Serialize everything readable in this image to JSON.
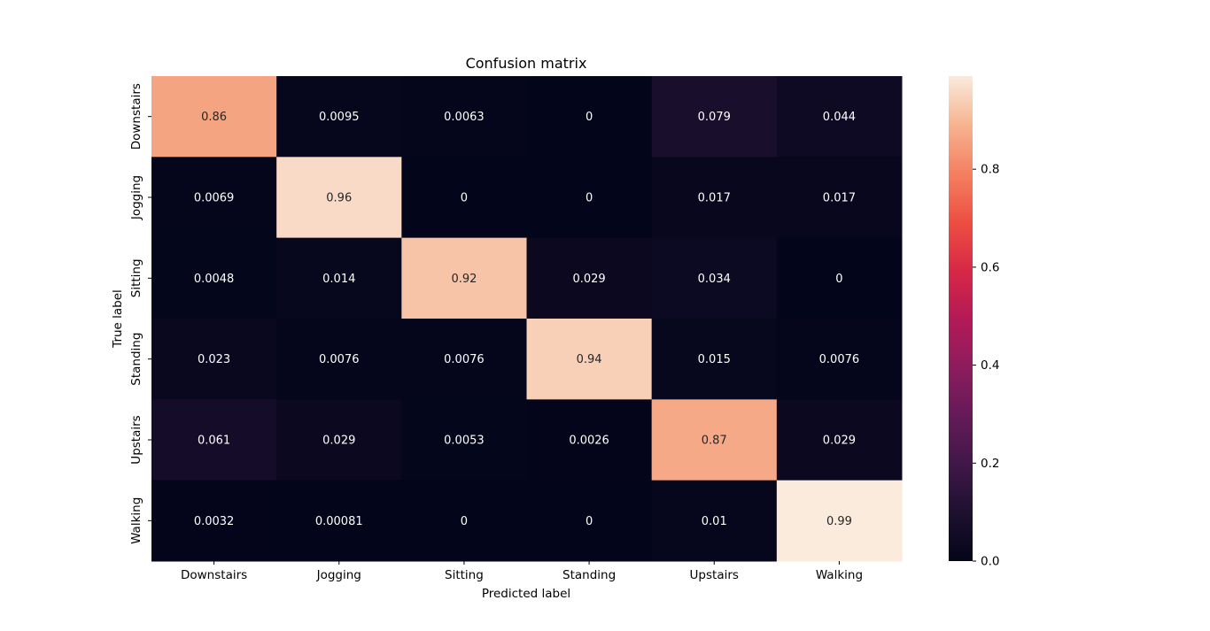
{
  "chart_data": {
    "type": "heatmap",
    "title": "Confusion matrix",
    "xlabel": "Predicted label",
    "ylabel": "True label",
    "x_categories": [
      "Downstairs",
      "Jogging",
      "Sitting",
      "Standing",
      "Upstairs",
      "Walking"
    ],
    "y_categories": [
      "Downstairs",
      "Jogging",
      "Sitting",
      "Standing",
      "Upstairs",
      "Walking"
    ],
    "values": [
      [
        0.86,
        0.0095,
        0.0063,
        0,
        0.079,
        0.044
      ],
      [
        0.0069,
        0.96,
        0,
        0,
        0.017,
        0.017
      ],
      [
        0.0048,
        0.014,
        0.92,
        0.029,
        0.034,
        0
      ],
      [
        0.023,
        0.0076,
        0.0076,
        0.94,
        0.015,
        0.0076
      ],
      [
        0.061,
        0.029,
        0.0053,
        0.0026,
        0.87,
        0.029
      ],
      [
        0.0032,
        0.00081,
        0,
        0,
        0.01,
        0.99
      ]
    ],
    "cell_labels": [
      [
        "0.86",
        "0.0095",
        "0.0063",
        "0",
        "0.079",
        "0.044"
      ],
      [
        "0.0069",
        "0.96",
        "0",
        "0",
        "0.017",
        "0.017"
      ],
      [
        "0.0048",
        "0.014",
        "0.92",
        "0.029",
        "0.034",
        "0"
      ],
      [
        "0.023",
        "0.0076",
        "0.0076",
        "0.94",
        "0.015",
        "0.0076"
      ],
      [
        "0.061",
        "0.029",
        "0.0053",
        "0.0026",
        "0.87",
        "0.029"
      ],
      [
        "0.0032",
        "0.00081",
        "0",
        "0",
        "0.01",
        "0.99"
      ]
    ],
    "colorbar": {
      "range": [
        0,
        0.99
      ],
      "ticks": [
        0.0,
        0.2,
        0.4,
        0.6,
        0.8
      ],
      "tick_labels": [
        "0.0",
        "0.2",
        "0.4",
        "0.6",
        "0.8"
      ]
    },
    "colormap": "rocket",
    "grid": false
  }
}
